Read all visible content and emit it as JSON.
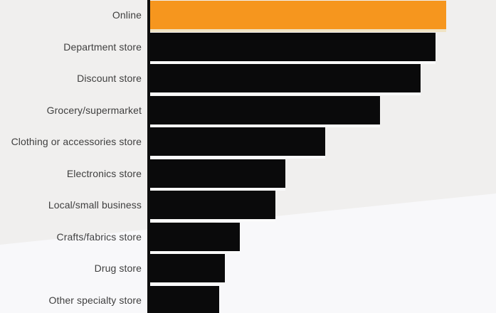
{
  "chart": {
    "background_top": "#f0efee",
    "background_bottom": "#f8f8fa",
    "axis_color": "#0d0d0d",
    "label_color": "#3f3f3f"
  },
  "chart_data": {
    "type": "bar",
    "orientation": "horizontal",
    "title": "",
    "xlabel": "",
    "ylabel": "",
    "categories": [
      "Online",
      "Department store",
      "Discount store",
      "Grocery/supermarket",
      "Clothing or accessories store",
      "Electronics store",
      "Local/small business",
      "Crafts/fabrics store",
      "Drug store",
      "Other specialty store"
    ],
    "values": [
      100,
      96.4,
      91.3,
      77.6,
      59.1,
      45.7,
      42.3,
      30.3,
      25.2,
      23.3
    ],
    "value_scale": "relative length, longest bar = 100 (no numeric axis or data labels visible)",
    "xlim": [
      0,
      100
    ],
    "grid": "off",
    "legend": "none",
    "bar_color_default": "#0a0a0b",
    "highlight_index": 0,
    "highlight_color": "#f6961e",
    "separator_color_default": "#fafafa",
    "separator_color_highlight": "#f0e3c3"
  }
}
